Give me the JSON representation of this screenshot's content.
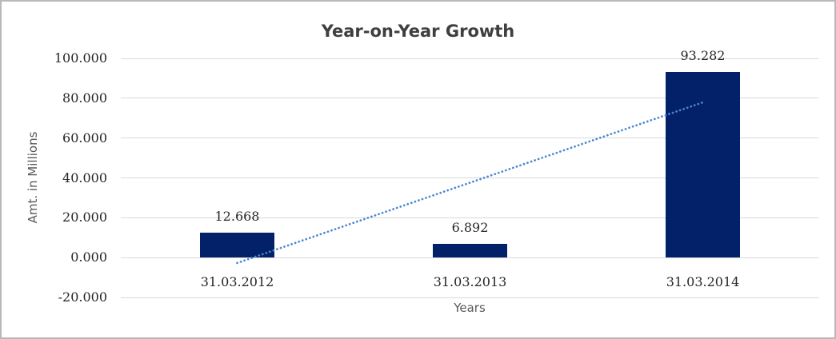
{
  "chart_data": {
    "type": "bar",
    "title": "Year-on-Year Growth",
    "xlabel": "Years",
    "ylabel": "Amt. in Millions",
    "categories": [
      "31.03.2012",
      "31.03.2013",
      "31.03.2014"
    ],
    "values": [
      12.668,
      6.892,
      93.282
    ],
    "data_labels": [
      "12.668",
      "6.892",
      "93.282"
    ],
    "ylim": [
      -20,
      100
    ],
    "yticks": {
      "values": [
        100,
        80,
        60,
        40,
        20,
        0,
        -20
      ],
      "labels": [
        "100.000",
        "80.000",
        "60.000",
        "40.000",
        "20.000",
        "0.000",
        "-20.000"
      ]
    },
    "grid": true,
    "legend": "none",
    "bar_color": "#032169",
    "gridline_color": "#D9D9D9",
    "title_color": "#3F3F3F",
    "axis_title_color": "#595959",
    "tick_label_color": "#262626",
    "trendline": {
      "type": "linear",
      "style": "dotted",
      "color": "#4A86D2",
      "start": {
        "category_index": 0,
        "value": -2.7
      },
      "end": {
        "category_index": 2,
        "value": 77.9
      }
    }
  }
}
